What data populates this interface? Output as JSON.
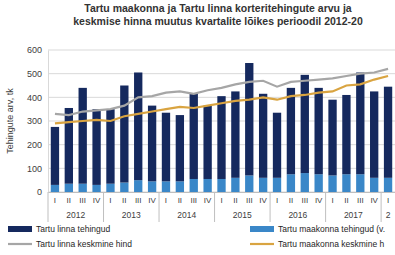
{
  "chart_data": {
    "type": "bar",
    "title": [
      "Tartu maakonna ja Tartu linna korteritehingute arvu ja",
      "keskmise hinna muutus kvartalite lõikes perioodil 2012-20"
    ],
    "y_label": "Tehingute arv, tk",
    "categories": [
      "I",
      "II",
      "III",
      "IV",
      "I",
      "II",
      "III",
      "IV",
      "I",
      "II",
      "III",
      "IV",
      "I",
      "II",
      "III",
      "IV",
      "I",
      "II",
      "III",
      "IV",
      "I",
      "II",
      "III",
      "IV",
      "I"
    ],
    "year_labels": [
      "2012",
      "2013",
      "2014",
      "2015",
      "2016",
      "2017",
      "2"
    ],
    "stacked": true,
    "grid": true,
    "legend": "bottom",
    "ylim": [
      0,
      600
    ],
    "yticks": [
      0,
      100,
      200,
      300,
      400,
      500,
      600
    ],
    "series": [
      {
        "name": "Tartu linna tehingud",
        "type": "bar",
        "color": "#15295e",
        "values": [
          245,
          320,
          405,
          320,
          315,
          410,
          455,
          320,
          290,
          280,
          360,
          310,
          350,
          365,
          475,
          355,
          275,
          365,
          415,
          365,
          320,
          335,
          430,
          365,
          385
        ]
      },
      {
        "name": "Tartu maakonna tehingud (v.",
        "type": "bar",
        "color": "#3a87c8",
        "values": [
          30,
          35,
          35,
          30,
          35,
          40,
          50,
          45,
          45,
          45,
          55,
          55,
          55,
          60,
          70,
          60,
          60,
          75,
          80,
          75,
          70,
          75,
          75,
          60,
          60
        ]
      },
      {
        "name": "Tartu linna keskmine hind",
        "type": "line",
        "color": "#a6a6a6",
        "values": [
          330,
          325,
          340,
          345,
          350,
          365,
          400,
          405,
          420,
          425,
          415,
          430,
          440,
          455,
          465,
          470,
          445,
          465,
          470,
          475,
          480,
          490,
          500,
          505,
          520
        ]
      },
      {
        "name": "Tartu maakonna keskmine h",
        "type": "line",
        "color": "#d9a441",
        "values": [
          290,
          295,
          300,
          305,
          300,
          320,
          330,
          340,
          350,
          360,
          355,
          365,
          375,
          385,
          390,
          400,
          390,
          405,
          410,
          420,
          425,
          450,
          455,
          475,
          490
        ]
      }
    ]
  }
}
